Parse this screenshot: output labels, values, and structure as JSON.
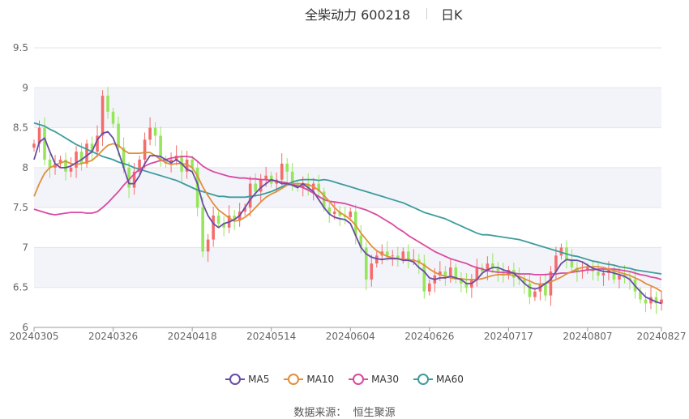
{
  "header": {
    "title": "全柴动力 600218",
    "period": "日K"
  },
  "source": {
    "label": "数据来源：",
    "value": "恒生聚源"
  },
  "colors": {
    "up": "#f56c6c",
    "down": "#95e65a",
    "ma5": "#6a4ba6",
    "ma10": "#e08f3c",
    "ma30": "#d94aa0",
    "ma60": "#3d9c9c",
    "band": "#f3f4fa",
    "grid": "#e5e5e5"
  },
  "chart_data": {
    "type": "candlestick",
    "title": "全柴动力 600218",
    "ylim": [
      6,
      9.5
    ],
    "y_ticks": [
      "9.5",
      "9",
      "8.5",
      "8",
      "7.5",
      "7",
      "6.5",
      "6"
    ],
    "x_tick_labels": [
      "20240305",
      "20240326",
      "20240418",
      "20240514",
      "20240604",
      "20240626",
      "20240717",
      "20240807",
      "20240827"
    ],
    "x_tick_index": [
      0,
      15,
      30,
      45,
      60,
      75,
      90,
      105,
      119
    ],
    "legend_position": "bottom",
    "legend": [
      {
        "key": "ma5",
        "name": "MA5"
      },
      {
        "key": "ma10",
        "name": "MA10"
      },
      {
        "key": "ma30",
        "name": "MA30"
      },
      {
        "key": "ma60",
        "name": "MA60"
      }
    ],
    "close": [
      8.3,
      8.5,
      8.1,
      8.0,
      8.05,
      8.1,
      7.95,
      8.0,
      8.2,
      8.05,
      8.3,
      8.2,
      8.4,
      8.9,
      8.7,
      8.55,
      8.25,
      8.0,
      7.75,
      7.95,
      8.1,
      8.35,
      8.5,
      8.4,
      8.1,
      8.05,
      8.1,
      8.15,
      7.95,
      8.1,
      8.0,
      7.5,
      6.95,
      7.1,
      7.4,
      7.3,
      7.25,
      7.4,
      7.35,
      7.45,
      7.5,
      7.8,
      7.7,
      7.85,
      7.9,
      7.8,
      7.85,
      8.05,
      7.95,
      7.8,
      7.75,
      7.8,
      7.72,
      7.8,
      7.7,
      7.5,
      7.42,
      7.45,
      7.4,
      7.38,
      7.45,
      7.15,
      7.0,
      6.6,
      6.8,
      6.9,
      6.95,
      6.9,
      6.9,
      6.85,
      6.95,
      6.85,
      6.85,
      6.8,
      6.45,
      6.55,
      6.65,
      6.7,
      6.65,
      6.75,
      6.6,
      6.55,
      6.5,
      6.6,
      6.75,
      6.7,
      6.8,
      6.75,
      6.7,
      6.65,
      6.72,
      6.62,
      6.6,
      6.55,
      6.38,
      6.45,
      6.55,
      6.4,
      6.7,
      6.9,
      7.0,
      6.85,
      6.75,
      6.7,
      6.72,
      6.75,
      6.7,
      6.65,
      6.68,
      6.72,
      6.6,
      6.65,
      6.62,
      6.6,
      6.45,
      6.35,
      6.3,
      6.38,
      6.3,
      6.35
    ],
    "ma5": [
      8.1,
      8.32,
      8.37,
      8.2,
      8.05,
      8.0,
      8.0,
      8.02,
      8.06,
      8.1,
      8.15,
      8.2,
      8.35,
      8.43,
      8.45,
      8.37,
      8.2,
      8.0,
      7.8,
      7.8,
      7.9,
      8.05,
      8.15,
      8.15,
      8.14,
      8.1,
      8.06,
      8.1,
      8.05,
      7.98,
      7.95,
      7.8,
      7.55,
      7.4,
      7.3,
      7.25,
      7.3,
      7.32,
      7.35,
      7.4,
      7.5,
      7.6,
      7.68,
      7.75,
      7.8,
      7.85,
      7.83,
      7.8,
      7.8,
      7.78,
      7.75,
      7.8,
      7.75,
      7.7,
      7.6,
      7.5,
      7.42,
      7.38,
      7.36,
      7.35,
      7.3,
      7.15,
      7.0,
      6.92,
      6.88,
      6.86,
      6.85,
      6.86,
      6.86,
      6.86,
      6.84,
      6.84,
      6.82,
      6.75,
      6.7,
      6.62,
      6.6,
      6.62,
      6.62,
      6.64,
      6.62,
      6.6,
      6.55,
      6.55,
      6.6,
      6.68,
      6.72,
      6.75,
      6.75,
      6.72,
      6.7,
      6.68,
      6.62,
      6.55,
      6.5,
      6.48,
      6.5,
      6.55,
      6.6,
      6.7,
      6.8,
      6.85,
      6.84,
      6.84,
      6.82,
      6.78,
      6.74,
      6.72,
      6.7,
      6.7,
      6.68,
      6.66,
      6.64,
      6.6,
      6.52,
      6.45,
      6.38,
      6.35,
      6.32,
      6.3
    ],
    "ma10": [
      7.64,
      7.8,
      7.93,
      8.0,
      8.03,
      8.06,
      8.08,
      8.05,
      8.04,
      8.05,
      8.07,
      8.09,
      8.15,
      8.22,
      8.28,
      8.3,
      8.28,
      8.22,
      8.18,
      8.18,
      8.18,
      8.19,
      8.19,
      8.15,
      8.1,
      8.06,
      8.04,
      8.05,
      8.05,
      8.04,
      8.0,
      7.9,
      7.76,
      7.65,
      7.55,
      7.47,
      7.42,
      7.37,
      7.33,
      7.34,
      7.38,
      7.43,
      7.5,
      7.57,
      7.63,
      7.67,
      7.7,
      7.74,
      7.78,
      7.8,
      7.8,
      7.8,
      7.79,
      7.76,
      7.72,
      7.65,
      7.58,
      7.5,
      7.44,
      7.4,
      7.35,
      7.28,
      7.18,
      7.1,
      7.02,
      6.96,
      6.92,
      6.89,
      6.87,
      6.86,
      6.85,
      6.85,
      6.84,
      6.82,
      6.78,
      6.73,
      6.69,
      6.66,
      6.64,
      6.62,
      6.61,
      6.61,
      6.6,
      6.6,
      6.6,
      6.61,
      6.63,
      6.65,
      6.66,
      6.66,
      6.66,
      6.65,
      6.64,
      6.61,
      6.58,
      6.55,
      6.54,
      6.55,
      6.57,
      6.6,
      6.63,
      6.67,
      6.7,
      6.73,
      6.75,
      6.76,
      6.76,
      6.76,
      6.75,
      6.73,
      6.71,
      6.69,
      6.67,
      6.65,
      6.62,
      6.59,
      6.55,
      6.52,
      6.49,
      6.45
    ],
    "ma30": [
      7.48,
      7.46,
      7.44,
      7.42,
      7.41,
      7.42,
      7.43,
      7.44,
      7.44,
      7.44,
      7.43,
      7.43,
      7.45,
      7.5,
      7.56,
      7.63,
      7.7,
      7.78,
      7.85,
      7.92,
      7.98,
      8.02,
      8.05,
      8.07,
      8.09,
      8.1,
      8.12,
      8.13,
      8.14,
      8.14,
      8.13,
      8.08,
      8.02,
      7.98,
      7.95,
      7.93,
      7.91,
      7.89,
      7.88,
      7.87,
      7.87,
      7.86,
      7.86,
      7.85,
      7.85,
      7.84,
      7.83,
      7.82,
      7.81,
      7.79,
      7.77,
      7.75,
      7.72,
      7.68,
      7.64,
      7.6,
      7.58,
      7.57,
      7.56,
      7.55,
      7.53,
      7.51,
      7.49,
      7.47,
      7.44,
      7.41,
      7.37,
      7.33,
      7.29,
      7.24,
      7.2,
      7.15,
      7.11,
      7.07,
      7.03,
      6.99,
      6.95,
      6.92,
      6.89,
      6.86,
      6.84,
      6.82,
      6.8,
      6.77,
      6.75,
      6.73,
      6.71,
      6.7,
      6.69,
      6.69,
      6.68,
      6.68,
      6.67,
      6.67,
      6.67,
      6.66,
      6.66,
      6.66,
      6.67,
      6.67,
      6.68,
      6.68,
      6.69,
      6.7,
      6.71,
      6.72,
      6.72,
      6.73,
      6.73,
      6.73,
      6.73,
      6.72,
      6.71,
      6.7,
      6.68,
      6.66,
      6.65,
      6.63,
      6.62,
      6.6
    ],
    "ma60": [
      8.56,
      8.54,
      8.52,
      8.48,
      8.45,
      8.41,
      8.37,
      8.33,
      8.29,
      8.26,
      8.23,
      8.2,
      8.17,
      8.14,
      8.12,
      8.1,
      8.07,
      8.05,
      8.03,
      8.0,
      7.98,
      7.96,
      7.94,
      7.92,
      7.9,
      7.88,
      7.86,
      7.84,
      7.81,
      7.78,
      7.75,
      7.72,
      7.7,
      7.68,
      7.66,
      7.64,
      7.64,
      7.63,
      7.63,
      7.63,
      7.63,
      7.64,
      7.65,
      7.66,
      7.68,
      7.7,
      7.73,
      7.76,
      7.79,
      7.82,
      7.84,
      7.85,
      7.85,
      7.85,
      7.84,
      7.85,
      7.84,
      7.82,
      7.8,
      7.78,
      7.76,
      7.74,
      7.72,
      7.7,
      7.68,
      7.66,
      7.64,
      7.62,
      7.6,
      7.58,
      7.56,
      7.53,
      7.5,
      7.47,
      7.44,
      7.42,
      7.4,
      7.38,
      7.36,
      7.33,
      7.3,
      7.27,
      7.24,
      7.21,
      7.18,
      7.16,
      7.16,
      7.15,
      7.14,
      7.13,
      7.12,
      7.11,
      7.1,
      7.08,
      7.06,
      7.04,
      7.02,
      7.0,
      6.98,
      6.96,
      6.94,
      6.92,
      6.9,
      6.89,
      6.87,
      6.85,
      6.83,
      6.82,
      6.8,
      6.79,
      6.78,
      6.76,
      6.75,
      6.74,
      6.72,
      6.71,
      6.7,
      6.69,
      6.68,
      6.67
    ]
  }
}
